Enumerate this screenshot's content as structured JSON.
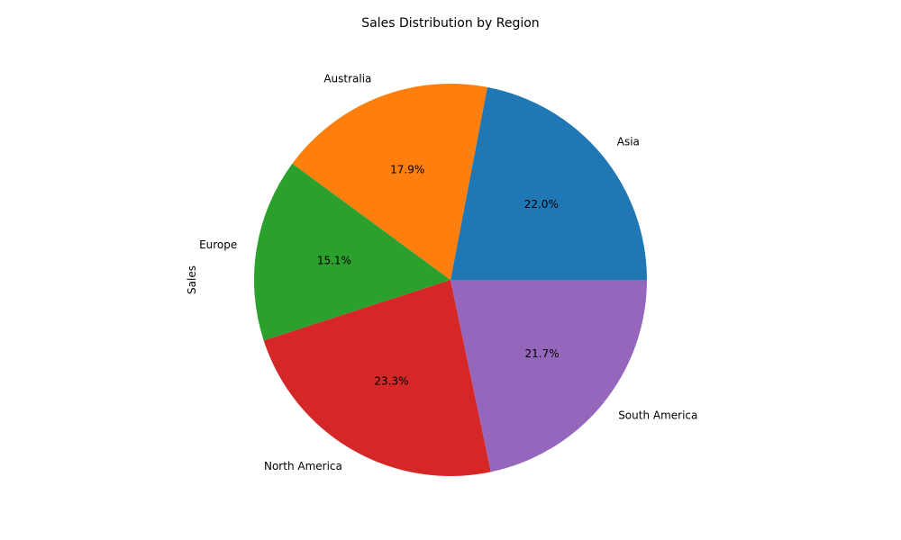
{
  "chart_data": {
    "type": "pie",
    "title": "Sales Distribution by Region",
    "ylabel": "Sales",
    "start_angle_deg": 0,
    "direction": "counterclockwise",
    "slices": [
      {
        "label": "Asia",
        "percent": 22.0,
        "pct_label": "22.0%",
        "color": "#1f77b4"
      },
      {
        "label": "Australia",
        "percent": 17.9,
        "pct_label": "17.9%",
        "color": "#ff7f0e"
      },
      {
        "label": "Europe",
        "percent": 15.1,
        "pct_label": "15.1%",
        "color": "#2ca02c"
      },
      {
        "label": "North America",
        "percent": 23.3,
        "pct_label": "23.3%",
        "color": "#d62728"
      },
      {
        "label": "South America",
        "percent": 21.7,
        "pct_label": "21.7%",
        "color": "#9467bd"
      }
    ]
  }
}
